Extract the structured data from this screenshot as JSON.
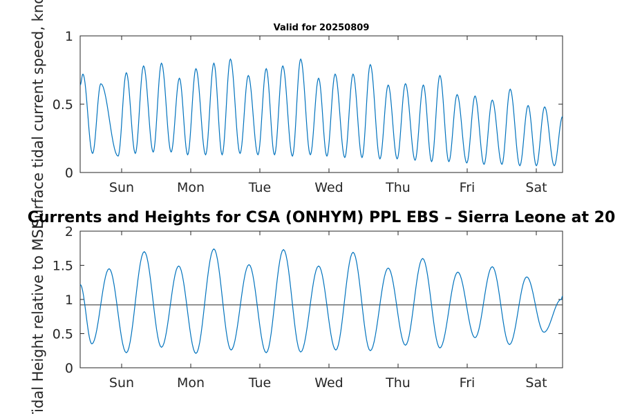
{
  "chart_data": [
    {
      "type": "line",
      "title": "Valid for 20250809",
      "ylabel": "Surface tidal current speed, knots",
      "xlabel": "",
      "x_categories": [
        "Sun",
        "Mon",
        "Tue",
        "Wed",
        "Thu",
        "Fri",
        "Sat"
      ],
      "yticks": [
        "0",
        "0.5",
        "1"
      ],
      "ylim": [
        0,
        1
      ],
      "xlim_days": [
        0,
        7
      ],
      "grid": false,
      "color": "#0072bd",
      "series": [
        {
          "x_days": [
            0.0,
            0.04,
            0.18,
            0.3,
            0.55,
            0.67,
            0.8,
            0.92,
            1.06,
            1.18,
            1.32,
            1.44,
            1.56,
            1.68,
            1.82,
            1.94,
            2.06,
            2.18,
            2.32,
            2.44,
            2.58,
            2.7,
            2.82,
            2.94,
            3.08,
            3.2,
            3.34,
            3.46,
            3.58,
            3.7,
            3.84,
            3.96,
            4.09,
            4.21,
            4.35,
            4.47,
            4.6,
            4.72,
            4.86,
            4.98,
            5.1,
            5.22,
            5.35,
            5.47,
            5.61,
            5.73,
            5.86,
            5.98,
            6.12,
            6.24,
            6.38,
            6.5,
            6.62,
            6.74,
            6.88,
            7.0
          ],
          "values": [
            0.64,
            0.72,
            0.14,
            0.65,
            0.12,
            0.73,
            0.14,
            0.78,
            0.15,
            0.8,
            0.15,
            0.69,
            0.13,
            0.76,
            0.13,
            0.8,
            0.13,
            0.83,
            0.14,
            0.71,
            0.13,
            0.76,
            0.13,
            0.78,
            0.12,
            0.83,
            0.13,
            0.69,
            0.12,
            0.72,
            0.11,
            0.72,
            0.11,
            0.79,
            0.1,
            0.64,
            0.1,
            0.65,
            0.09,
            0.64,
            0.08,
            0.71,
            0.08,
            0.57,
            0.07,
            0.56,
            0.06,
            0.53,
            0.06,
            0.61,
            0.05,
            0.49,
            0.05,
            0.48,
            0.05,
            0.41
          ]
        }
      ]
    },
    {
      "type": "line",
      "title": "Currents and Heights for CSA (ONHYM) PPL EBS  – Sierra Leone at 20",
      "ylabel": "Tidal Height relative to MSL",
      "xlabel": "",
      "x_categories": [
        "Sun",
        "Mon",
        "Tue",
        "Wed",
        "Thu",
        "Fri",
        "Sat"
      ],
      "yticks": [
        "0",
        "0.5",
        "1",
        "1.5",
        "2"
      ],
      "ylim": [
        0,
        2
      ],
      "xlim_days": [
        0,
        7
      ],
      "grid": false,
      "reference_line": 0.92,
      "color": "#0072bd",
      "series": [
        {
          "x_days": [
            0.0,
            0.17,
            0.42,
            0.67,
            0.93,
            1.18,
            1.43,
            1.68,
            1.94,
            2.19,
            2.45,
            2.7,
            2.95,
            3.2,
            3.46,
            3.71,
            3.96,
            4.21,
            4.47,
            4.72,
            4.97,
            5.22,
            5.48,
            5.73,
            5.98,
            6.23,
            6.48,
            6.73,
            6.98,
            7.0
          ],
          "values": [
            1.22,
            0.35,
            1.45,
            0.22,
            1.7,
            0.3,
            1.49,
            0.21,
            1.74,
            0.26,
            1.51,
            0.22,
            1.73,
            0.23,
            1.49,
            0.26,
            1.69,
            0.25,
            1.46,
            0.33,
            1.6,
            0.29,
            1.4,
            0.44,
            1.48,
            0.34,
            1.33,
            0.52,
            1.0,
            1.05
          ]
        }
      ]
    }
  ]
}
